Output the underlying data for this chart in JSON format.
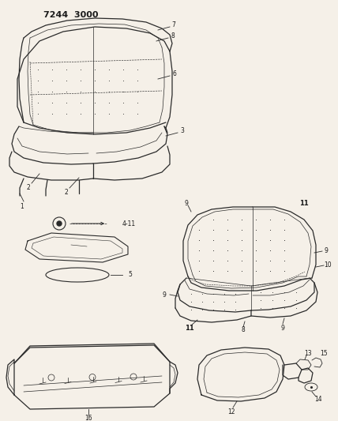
{
  "title": "7244 3000",
  "bg_color": "#f5f0e8",
  "line_color": "#2a2a2a",
  "text_color": "#1a1a1a",
  "fig_w": 4.28,
  "fig_h": 5.33,
  "dpi": 100
}
